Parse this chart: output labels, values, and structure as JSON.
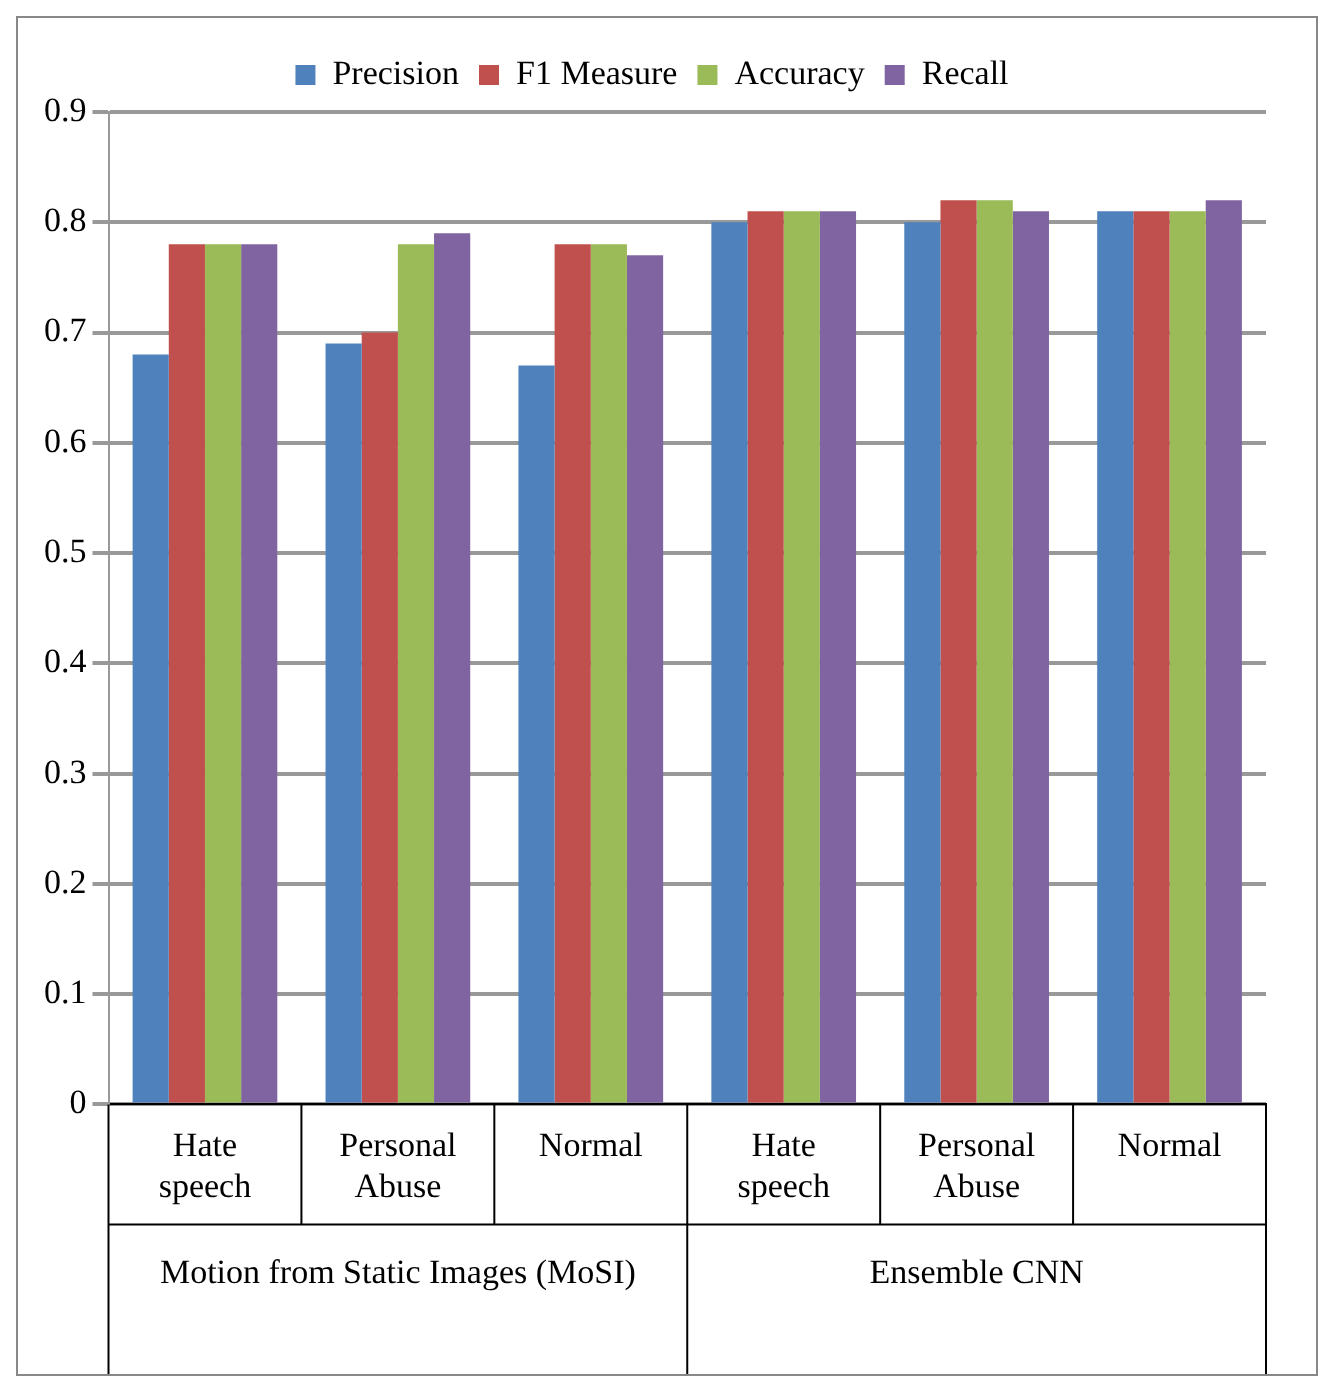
{
  "chart_data": {
    "type": "bar",
    "categories": [
      "Hate speech",
      "Personal Abuse",
      "Normal",
      "Hate speech",
      "Personal Abuse",
      "Normal"
    ],
    "series": [
      {
        "name": "Precision",
        "color": "#4f81bd",
        "values": [
          0.68,
          0.69,
          0.67,
          0.8,
          0.8,
          0.81
        ]
      },
      {
        "name": "F1 Measure",
        "color": "#c0504d",
        "values": [
          0.78,
          0.7,
          0.78,
          0.81,
          0.82,
          0.81
        ]
      },
      {
        "name": "Accuracy",
        "color": "#9bbb59",
        "values": [
          0.78,
          0.78,
          0.78,
          0.81,
          0.82,
          0.81
        ]
      },
      {
        "name": "Recall",
        "color": "#8064a2",
        "values": [
          0.78,
          0.79,
          0.77,
          0.81,
          0.81,
          0.82
        ]
      }
    ],
    "annotations": [
      "Motion from Static Images (MoSI)",
      "Ensemble CNN"
    ],
    "ylim": [
      0,
      0.9
    ],
    "yticks": [
      0,
      0.1,
      0.2,
      0.3,
      0.4,
      0.5,
      0.6,
      0.7,
      0.8,
      0.9
    ],
    "grid": "y",
    "legend": "top"
  }
}
